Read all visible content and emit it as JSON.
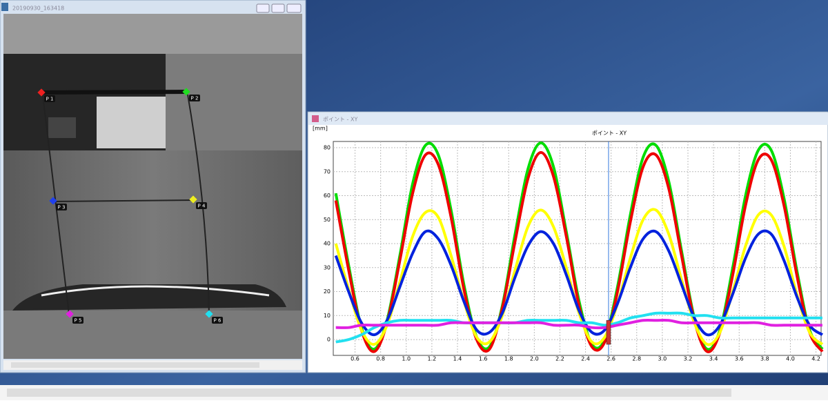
{
  "image_window": {
    "title": "20190930_163418",
    "points": [
      "P 1",
      "P 2",
      "P 3",
      "P 4",
      "P 5",
      "P 6"
    ]
  },
  "graph_window": {
    "title": "ポイント - XY"
  },
  "chart_data": {
    "type": "line",
    "title": "ポイント - XY",
    "y_unit": "[mm]",
    "x": [
      0.45,
      0.55,
      0.65,
      0.75,
      0.85,
      0.95,
      1.05,
      1.15,
      1.25,
      1.35,
      1.45,
      1.55,
      1.65,
      1.75,
      1.85,
      1.95,
      2.05,
      2.15,
      2.25,
      2.35,
      2.45,
      2.55,
      2.65,
      2.75,
      2.85,
      2.95,
      3.05,
      3.15,
      3.25,
      3.35,
      3.45,
      3.55,
      3.65,
      3.75,
      3.85,
      3.95,
      4.05,
      4.15,
      4.25
    ],
    "series": [
      {
        "color": "#00dd00",
        "values": [
          61,
          31,
          5,
          -4,
          8,
          35,
          65,
          81,
          77,
          54,
          23,
          1,
          -3,
          14,
          44,
          71,
          82,
          72,
          45,
          16,
          -2,
          0,
          22,
          52,
          76,
          81,
          66,
          37,
          9,
          -4,
          4,
          30,
          60,
          79,
          79,
          59,
          29,
          4,
          -4
        ]
      },
      {
        "color": "#ee0000",
        "values": [
          58,
          29,
          4,
          -5,
          7,
          33,
          61,
          77,
          73,
          51,
          21,
          0,
          -4,
          13,
          41,
          67,
          78,
          68,
          43,
          14,
          -3,
          -1,
          20,
          49,
          72,
          77,
          63,
          35,
          8,
          -5,
          3,
          27,
          56,
          75,
          75,
          56,
          27,
          3,
          -5
        ]
      },
      {
        "color": "#ffff00",
        "values": [
          40,
          21,
          4,
          -2,
          6,
          24,
          43,
          53,
          51,
          35,
          16,
          1,
          -1,
          10,
          29,
          47,
          54,
          47,
          30,
          11,
          -1,
          1,
          15,
          34,
          50,
          54,
          44,
          25,
          7,
          -2,
          3,
          20,
          39,
          52,
          52,
          39,
          19,
          3,
          -2
        ]
      },
      {
        "color": "#0022dd",
        "values": [
          35,
          20,
          7,
          2,
          8,
          22,
          36,
          45,
          42,
          31,
          16,
          4,
          3,
          11,
          26,
          39,
          45,
          40,
          27,
          12,
          3,
          4,
          15,
          30,
          42,
          45,
          37,
          23,
          9,
          2,
          6,
          19,
          34,
          44,
          44,
          33,
          18,
          6,
          2
        ]
      },
      {
        "color": "#22e0f0",
        "values": [
          -1,
          0,
          2,
          5,
          7,
          8,
          8,
          8,
          8,
          8,
          7,
          7,
          7,
          7,
          7,
          8,
          8,
          8,
          8,
          7,
          7,
          6,
          7,
          9,
          10,
          11,
          11,
          11,
          10,
          10,
          9,
          9,
          9,
          9,
          9,
          9,
          9,
          9,
          9
        ]
      },
      {
        "color": "#e020e0",
        "values": [
          5,
          5,
          6,
          6,
          6,
          6,
          6,
          6,
          6,
          7,
          7,
          7,
          7,
          7,
          7,
          7,
          7,
          6,
          6,
          6,
          5,
          5,
          6,
          7,
          8,
          8,
          8,
          7,
          7,
          7,
          7,
          7,
          7,
          7,
          6,
          6,
          6,
          6,
          6
        ]
      }
    ],
    "cursor_x": 2.58,
    "xlim": [
      0.43,
      4.24
    ],
    "ylim": [
      -6.6,
      82.6
    ],
    "xticks": [
      0.6,
      0.8,
      {
        "value": 1.0,
        "label": "1.0"
      },
      1.2,
      1.4,
      1.6,
      1.8,
      {
        "value": 2.0,
        "label": "2.0"
      },
      2.2,
      2.4,
      2.6,
      2.8,
      {
        "value": 3.0,
        "label": "3.0"
      },
      3.2,
      3.4,
      3.6,
      3.8,
      {
        "value": 4.0,
        "label": "4.0"
      },
      4.2
    ],
    "yticks": [
      0,
      10,
      20,
      30,
      40,
      50,
      60,
      70,
      80
    ],
    "grid": true
  }
}
